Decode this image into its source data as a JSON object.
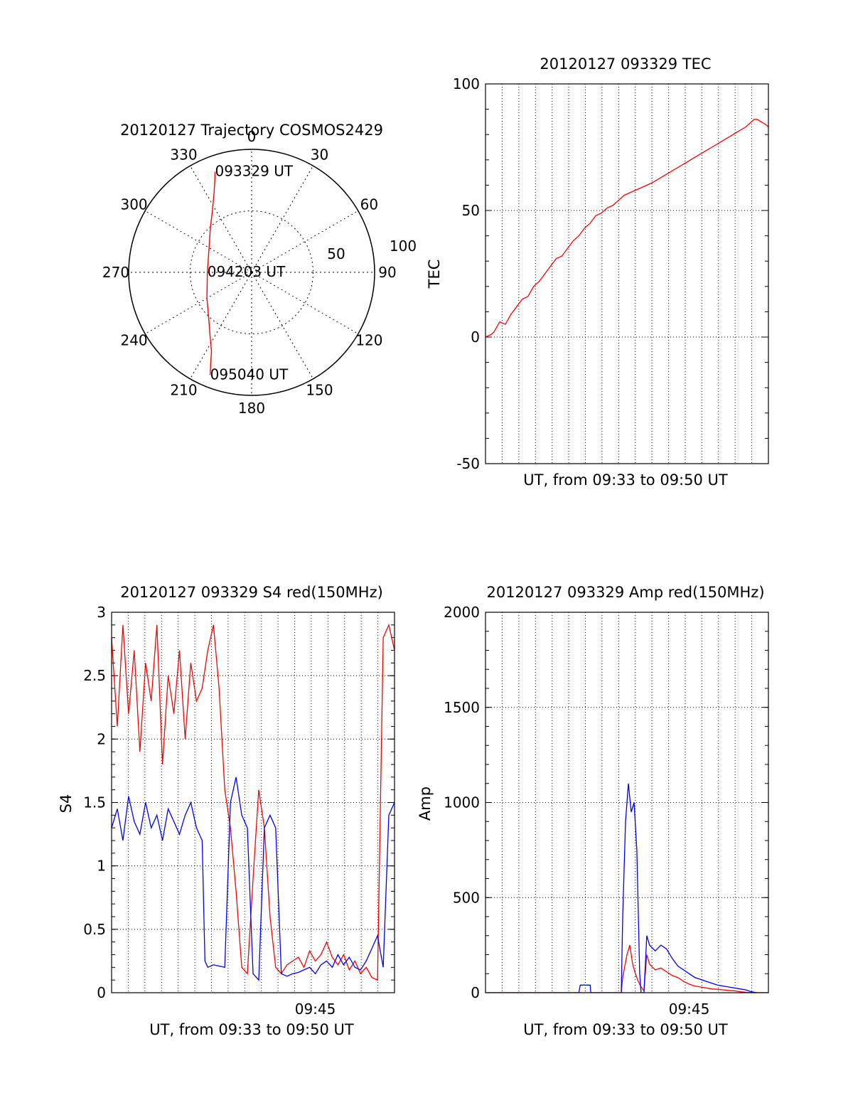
{
  "colors": {
    "red": "#ff0000",
    "blue": "#0000ff",
    "axis": "#000000",
    "grid": "#000000",
    "background": "#ffffff"
  },
  "chart_data": [
    {
      "type": "polar",
      "id": "trajectory",
      "title": "20120127 Trajectory COSMOS2429",
      "azimuth_labels": [
        "0",
        "30",
        "60",
        "90",
        "120",
        "150",
        "180",
        "210",
        "240",
        "270",
        "300",
        "330"
      ],
      "radial_labels": [
        "50",
        "100"
      ],
      "radial_max": 100,
      "grid": true,
      "series": [
        {
          "color": "#ff0000",
          "points": [
            [
              340,
              87
            ],
            [
              338,
              80
            ],
            [
              334,
              70
            ],
            [
              328,
              60
            ],
            [
              318,
              50
            ],
            [
              300,
              40
            ],
            [
              270,
              36
            ],
            [
              240,
              42
            ],
            [
              222,
              52
            ],
            [
              213,
              62
            ],
            [
              207,
              72
            ],
            [
              204,
              82
            ],
            [
              202,
              90
            ]
          ]
        }
      ],
      "annotations": [
        {
          "text": "093329 UT",
          "az": 340,
          "r": 87
        },
        {
          "text": "094203 UT",
          "az": 270,
          "r": 36
        },
        {
          "text": "095040 UT",
          "az": 202,
          "r": 90
        }
      ]
    },
    {
      "type": "line",
      "id": "tec",
      "title": "20120127 093329 TEC",
      "xlabel": "UT, from 09:33 to 09:50 UT",
      "ylabel": "TEC",
      "xlim": [
        0,
        1000
      ],
      "ylim": [
        -50,
        100
      ],
      "yticks": [
        "-50",
        "0",
        "50",
        "100"
      ],
      "grid": true,
      "series": [
        {
          "color": "#ff0000",
          "x": [
            0,
            20,
            30,
            50,
            70,
            90,
            110,
            130,
            150,
            170,
            190,
            210,
            230,
            250,
            270,
            290,
            310,
            330,
            350,
            370,
            390,
            410,
            430,
            450,
            470,
            490,
            510,
            530,
            550,
            570,
            590,
            620,
            650,
            680,
            710,
            740,
            770,
            800,
            830,
            860,
            890,
            920,
            950,
            960,
            975,
            990,
            1000
          ],
          "y": [
            0,
            1,
            2,
            6,
            5,
            9,
            12,
            15,
            16,
            20,
            22,
            25,
            28,
            31,
            32,
            35,
            38,
            40,
            43,
            45,
            48,
            49,
            51,
            52,
            54,
            56,
            57,
            58,
            59,
            60,
            61,
            63,
            65,
            67,
            69,
            71,
            73,
            75,
            77,
            79,
            81,
            83,
            86,
            86,
            85,
            84,
            83
          ]
        }
      ]
    },
    {
      "type": "line",
      "id": "s4",
      "title": "20120127 093329 S4 red(150MHz)",
      "xlabel": "UT, from 09:33 to 09:50 UT",
      "ylabel": "S4",
      "xlim": [
        0,
        1000
      ],
      "ylim": [
        0,
        3
      ],
      "yticks": [
        "0",
        "0.5",
        "1",
        "1.5",
        "2",
        "2.5",
        "3"
      ],
      "xtick_label": "09:45",
      "xtick_at": 720,
      "grid": true,
      "series": [
        {
          "color": "#ff0000",
          "x": [
            0,
            20,
            40,
            60,
            80,
            100,
            120,
            140,
            160,
            180,
            200,
            220,
            240,
            260,
            280,
            300,
            320,
            340,
            360,
            380,
            400,
            420,
            440,
            460,
            480,
            500,
            520,
            540,
            560,
            580,
            600,
            620,
            640,
            660,
            680,
            700,
            720,
            740,
            760,
            780,
            800,
            820,
            840,
            860,
            880,
            900,
            920,
            940,
            960,
            980,
            1000
          ],
          "y": [
            2.8,
            2.1,
            2.9,
            2.2,
            2.7,
            1.9,
            2.6,
            2.3,
            2.9,
            1.8,
            2.5,
            2.2,
            2.7,
            2.0,
            2.6,
            2.3,
            2.4,
            2.7,
            2.9,
            2.4,
            1.6,
            1.3,
            0.8,
            0.2,
            0.15,
            0.9,
            1.6,
            1.3,
            0.6,
            0.2,
            0.15,
            0.22,
            0.25,
            0.28,
            0.2,
            0.33,
            0.25,
            0.3,
            0.4,
            0.28,
            0.22,
            0.3,
            0.18,
            0.25,
            0.15,
            0.2,
            0.12,
            0.1,
            2.8,
            2.9,
            2.7
          ]
        },
        {
          "color": "#0000ff",
          "x": [
            0,
            20,
            40,
            60,
            80,
            100,
            120,
            140,
            160,
            180,
            200,
            220,
            240,
            260,
            280,
            300,
            320,
            330,
            340,
            360,
            380,
            400,
            420,
            440,
            460,
            480,
            500,
            520,
            540,
            560,
            580,
            600,
            620,
            640,
            660,
            680,
            700,
            720,
            740,
            760,
            780,
            800,
            820,
            840,
            860,
            880,
            900,
            920,
            940,
            960,
            980,
            1000
          ],
          "y": [
            1.3,
            1.45,
            1.2,
            1.55,
            1.35,
            1.25,
            1.5,
            1.3,
            1.4,
            1.2,
            1.45,
            1.35,
            1.25,
            1.4,
            1.5,
            1.3,
            1.2,
            0.25,
            0.2,
            0.22,
            0.21,
            0.2,
            1.5,
            1.7,
            1.4,
            1.3,
            0.15,
            0.1,
            1.3,
            1.4,
            1.3,
            0.15,
            0.13,
            0.15,
            0.16,
            0.18,
            0.2,
            0.15,
            0.22,
            0.25,
            0.2,
            0.3,
            0.22,
            0.28,
            0.2,
            0.18,
            0.25,
            0.35,
            0.45,
            0.2,
            1.4,
            1.5
          ]
        }
      ]
    },
    {
      "type": "line",
      "id": "amp",
      "title": "20120127 093329 Amp red(150MHz)",
      "xlabel": "UT, from 09:33 to 09:50 UT",
      "ylabel": "Amp",
      "xlim": [
        0,
        1000
      ],
      "ylim": [
        0,
        2000
      ],
      "yticks": [
        "0",
        "500",
        "1000",
        "1500",
        "2000"
      ],
      "xtick_label": "09:45",
      "xtick_at": 720,
      "grid": true,
      "series": [
        {
          "color": "#ff0000",
          "x": [
            0,
            480,
            485,
            500,
            510,
            520,
            530,
            540,
            550,
            560,
            570,
            580,
            600,
            620,
            640,
            660,
            680,
            700,
            720,
            740,
            760,
            780,
            800,
            820,
            840,
            860,
            880,
            900,
            940,
            980,
            1000
          ],
          "y": [
            0,
            0,
            80,
            200,
            250,
            150,
            100,
            60,
            30,
            10,
            200,
            150,
            120,
            130,
            110,
            90,
            80,
            60,
            45,
            35,
            30,
            25,
            20,
            18,
            15,
            12,
            10,
            5,
            0,
            0,
            0
          ]
        },
        {
          "color": "#0000ff",
          "x": [
            0,
            330,
            335,
            370,
            372,
            480,
            485,
            495,
            505,
            515,
            525,
            535,
            545,
            550,
            560,
            570,
            580,
            600,
            620,
            640,
            660,
            680,
            700,
            720,
            740,
            760,
            780,
            800,
            820,
            840,
            860,
            880,
            900,
            920,
            940,
            960,
            980,
            1000
          ],
          "y": [
            0,
            0,
            40,
            40,
            0,
            0,
            400,
            900,
            1100,
            950,
            1000,
            750,
            100,
            0,
            0,
            300,
            250,
            220,
            250,
            230,
            180,
            140,
            120,
            100,
            80,
            70,
            60,
            50,
            40,
            35,
            30,
            25,
            20,
            15,
            5,
            0,
            0,
            0
          ]
        }
      ]
    }
  ]
}
